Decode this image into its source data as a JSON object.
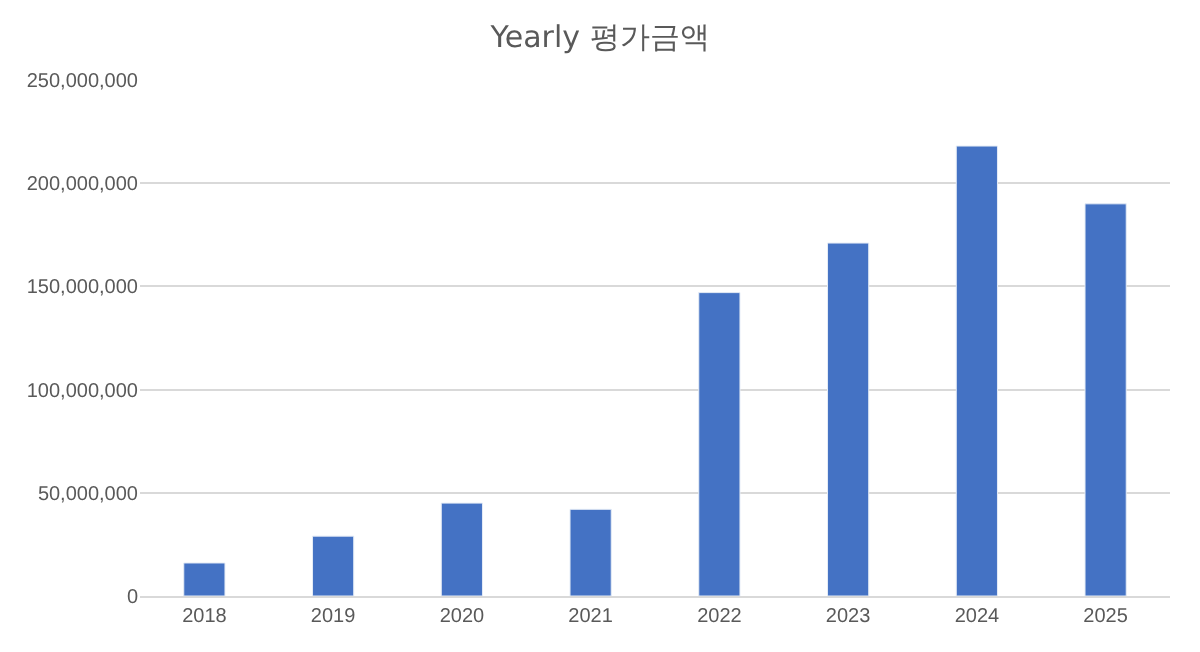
{
  "chart_data": {
    "type": "bar",
    "title": "Yearly 평가금액",
    "categories": [
      "2018",
      "2019",
      "2020",
      "2021",
      "2022",
      "2023",
      "2024",
      "2025"
    ],
    "values": [
      16000000,
      29000000,
      45000000,
      42000000,
      147000000,
      171000000,
      218000000,
      190000000
    ],
    "color": "#4472c4",
    "ylim": [
      0,
      250000000
    ],
    "yticks": [
      {
        "value": 0,
        "label": "0"
      },
      {
        "value": 50000000,
        "label": "50,000,000"
      },
      {
        "value": 100000000,
        "label": "100,000,000"
      },
      {
        "value": 150000000,
        "label": "150,000,000"
      },
      {
        "value": 200000000,
        "label": "200,000,000"
      },
      {
        "value": 250000000,
        "label": "250,000,000"
      }
    ],
    "grid": "y"
  }
}
